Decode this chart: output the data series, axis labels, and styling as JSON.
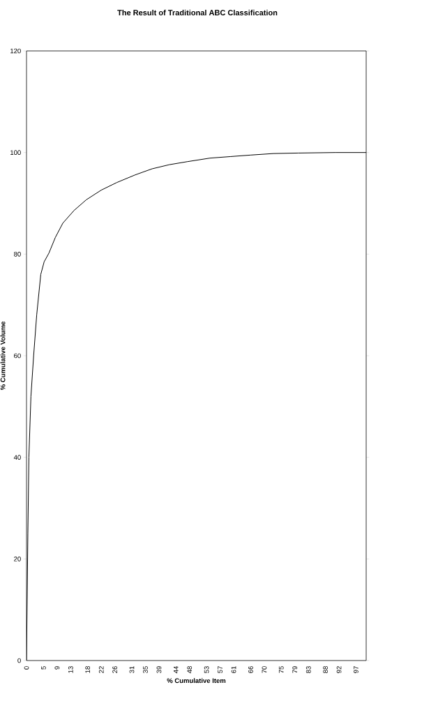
{
  "chart_data": {
    "type": "line",
    "title": "The Result of Traditional ABC Classification",
    "xlabel": "% Cumulative Item",
    "ylabel": "% Cumulative Volume",
    "xlim": [
      0,
      100
    ],
    "ylim": [
      0,
      120
    ],
    "xticks": [
      0,
      5,
      9,
      13,
      18,
      22,
      26,
      31,
      35,
      39,
      44,
      48,
      53,
      57,
      61,
      66,
      70,
      75,
      79,
      83,
      88,
      92,
      97
    ],
    "yticks": [
      0,
      20,
      40,
      60,
      80,
      100,
      120
    ],
    "series": [
      {
        "color": "#000000",
        "x": [
          0,
          0.4,
          0.7,
          1.3,
          2.1,
          3,
          4.2,
          5.2,
          6.6,
          8.5,
          10.7,
          14,
          17.6,
          22,
          26.6,
          32,
          37,
          42,
          47.3,
          54,
          60,
          66,
          72.7,
          80,
          91,
          100
        ],
        "values": [
          0,
          25,
          40,
          52,
          60,
          68,
          76,
          78.5,
          80.2,
          83.3,
          86.1,
          88.6,
          90.7,
          92.6,
          94.1,
          95.6,
          96.8,
          97.6,
          98.2,
          98.9,
          99.2,
          99.5,
          99.8,
          99.9,
          100,
          100
        ]
      }
    ]
  }
}
